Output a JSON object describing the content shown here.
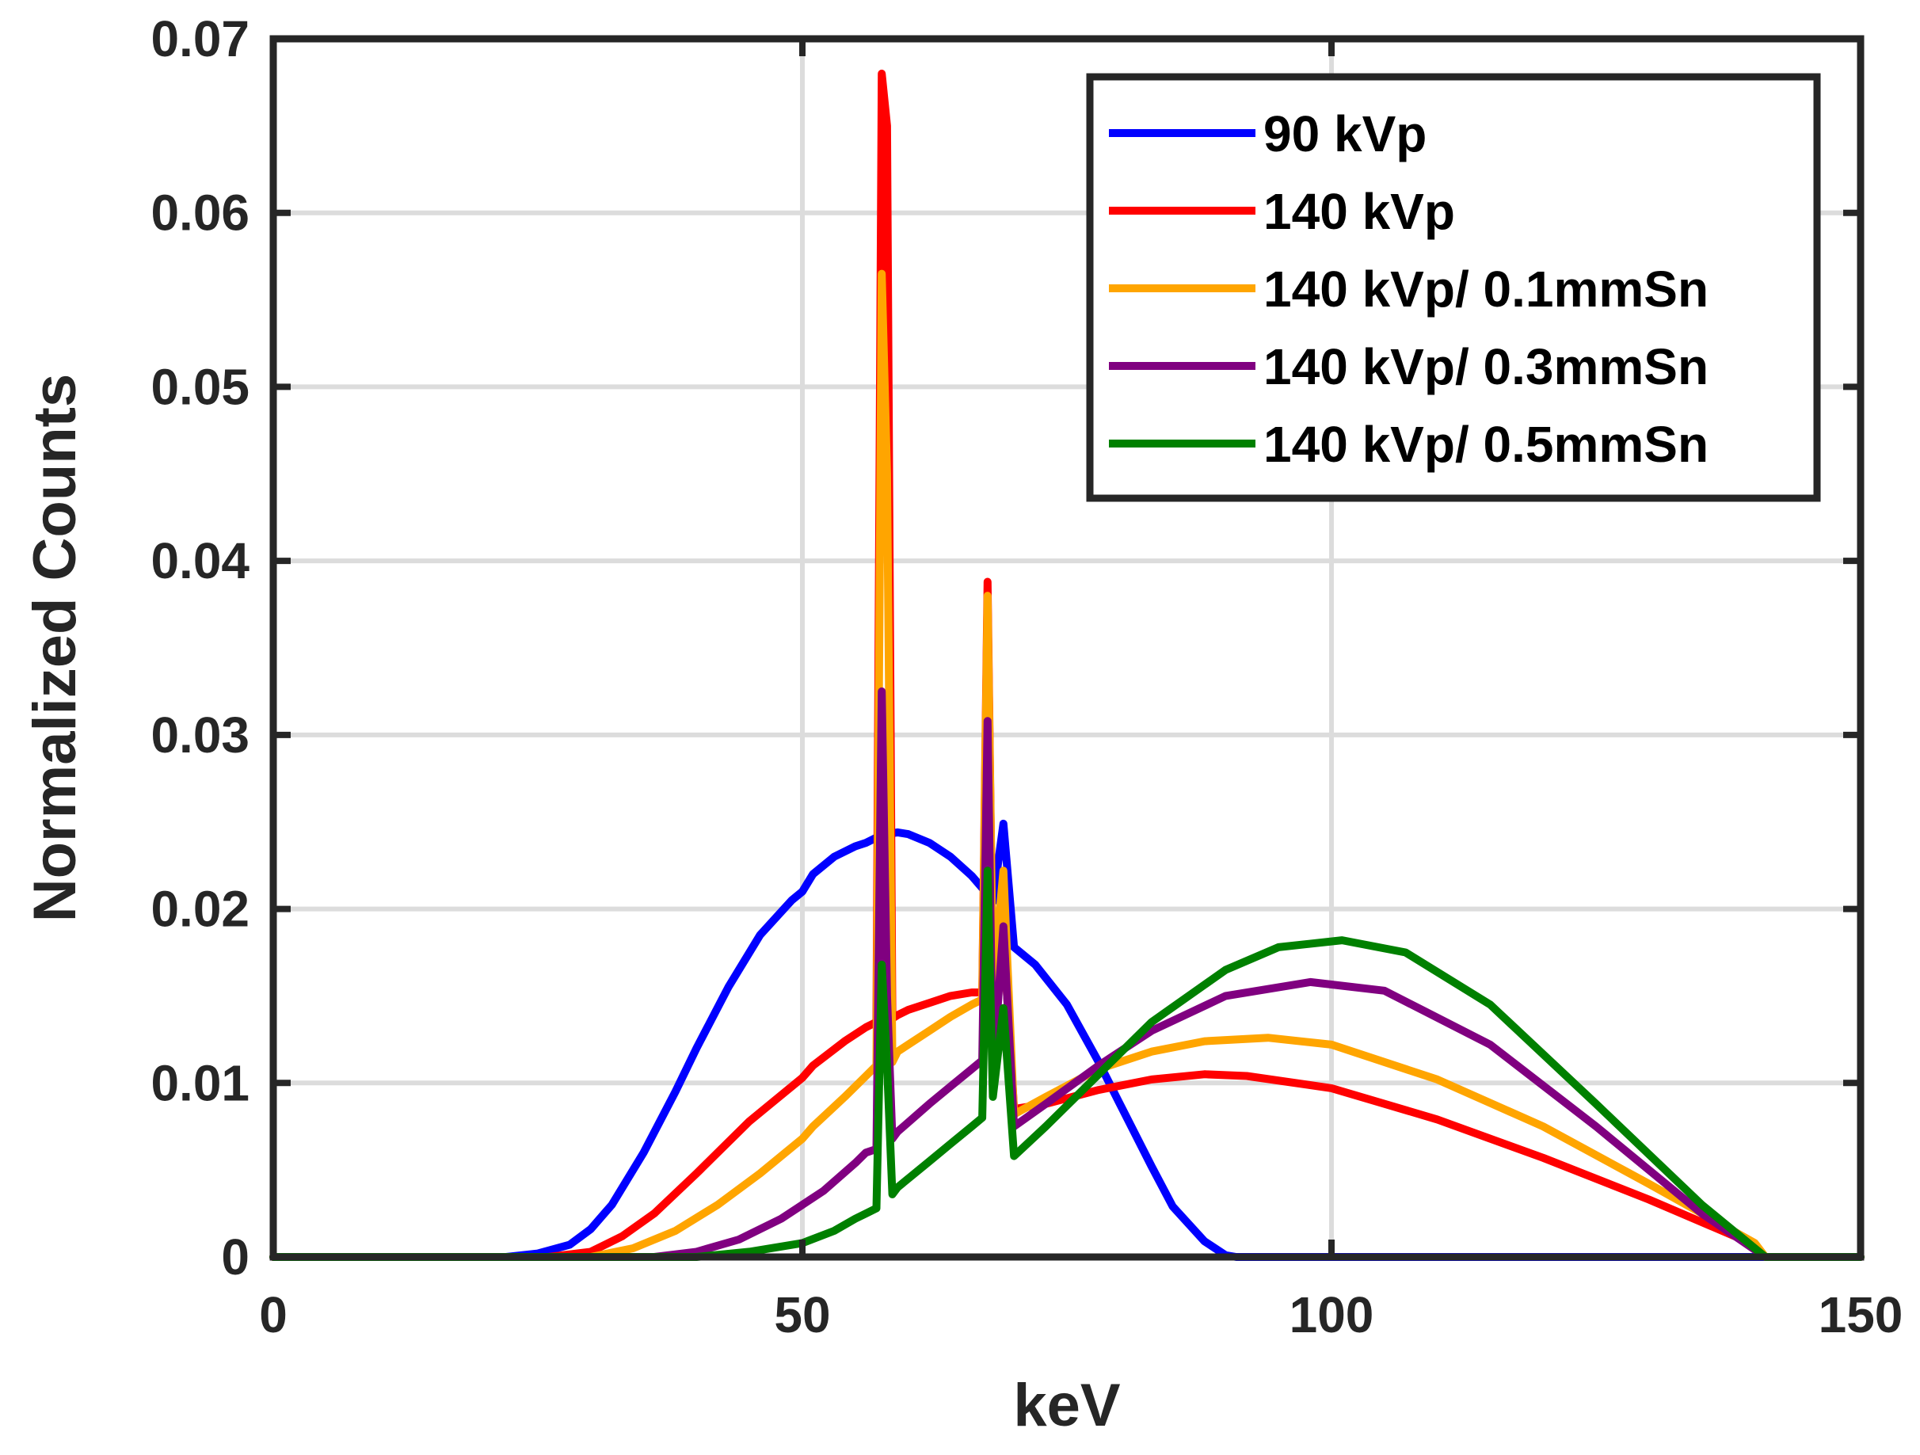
{
  "chart_data": {
    "type": "line",
    "title": "",
    "xlabel": "keV",
    "ylabel": "Normalized Counts",
    "xlim": [
      0,
      150
    ],
    "ylim": [
      0,
      0.07
    ],
    "xticks": [
      0,
      50,
      100,
      150
    ],
    "xtick_labels": [
      "0",
      "50",
      "100",
      "150"
    ],
    "yticks": [
      0,
      0.01,
      0.02,
      0.03,
      0.04,
      0.05,
      0.06,
      0.07
    ],
    "ytick_labels": [
      "0",
      "0.01",
      "0.02",
      "0.03",
      "0.04",
      "0.05",
      "0.06",
      "0.07"
    ],
    "grid": true,
    "legend_position": "top-right",
    "series": [
      {
        "name": "90 kVp",
        "color": "#0000ff",
        "x": [
          0,
          22,
          25,
          28,
          30,
          32,
          35,
          38,
          40,
          43,
          46,
          49,
          50,
          51,
          53,
          55,
          56,
          57,
          58,
          59,
          60,
          62,
          64,
          66,
          67,
          68,
          69,
          70,
          72,
          75,
          78,
          80,
          83,
          85,
          88,
          90,
          91,
          92,
          100,
          150
        ],
        "y": [
          0,
          0,
          0.0002,
          0.0007,
          0.0016,
          0.003,
          0.006,
          0.0095,
          0.012,
          0.0155,
          0.0185,
          0.0205,
          0.021,
          0.022,
          0.023,
          0.0236,
          0.0238,
          0.0241,
          0.0243,
          0.0244,
          0.0243,
          0.0238,
          0.023,
          0.0219,
          0.0212,
          0.0204,
          0.0249,
          0.0178,
          0.0168,
          0.0145,
          0.0112,
          0.0088,
          0.0052,
          0.0029,
          0.0009,
          0.0001,
          0,
          0,
          0,
          0
        ]
      },
      {
        "name": "140 kVp",
        "color": "#ff0000",
        "x": [
          0,
          26,
          30,
          33,
          36,
          40,
          45,
          50,
          51,
          54,
          56,
          57,
          57.5,
          58,
          58.5,
          59,
          60,
          62,
          64,
          66,
          67,
          67.5,
          68,
          69,
          70,
          73,
          78,
          83,
          88,
          92,
          100,
          110,
          120,
          130,
          140,
          141,
          150
        ],
        "y": [
          0,
          0,
          0.0003,
          0.0012,
          0.0025,
          0.0048,
          0.0078,
          0.0103,
          0.011,
          0.0124,
          0.0132,
          0.0135,
          0.068,
          0.065,
          0.0137,
          0.0139,
          0.0142,
          0.0146,
          0.015,
          0.0152,
          0.0152,
          0.0388,
          0.0155,
          0.0185,
          0.0085,
          0.0088,
          0.0096,
          0.0102,
          0.0105,
          0.0104,
          0.0097,
          0.0079,
          0.0057,
          0.0033,
          0.0007,
          0,
          0
        ]
      },
      {
        "name": "140 kVp/ 0.1mmSn",
        "color": "#ffa500",
        "x": [
          0,
          30,
          34,
          38,
          42,
          46,
          50,
          51,
          54,
          56,
          57,
          57.5,
          58,
          58.5,
          59,
          62,
          64,
          66,
          67,
          67.5,
          68,
          69,
          70,
          73,
          78,
          83,
          88,
          94,
          100,
          110,
          120,
          130,
          140,
          141,
          150
        ],
        "y": [
          0,
          0,
          0.0005,
          0.0015,
          0.003,
          0.0048,
          0.0068,
          0.0075,
          0.0092,
          0.0104,
          0.011,
          0.0565,
          0.045,
          0.0112,
          0.0118,
          0.013,
          0.0138,
          0.0145,
          0.0148,
          0.038,
          0.0155,
          0.0222,
          0.0082,
          0.0092,
          0.0108,
          0.0118,
          0.0124,
          0.0126,
          0.0122,
          0.0102,
          0.0075,
          0.0042,
          0.0008,
          0,
          0
        ]
      },
      {
        "name": "140 kVp/ 0.3mmSn",
        "color": "#800080",
        "x": [
          0,
          36,
          40,
          44,
          48,
          52,
          55,
          56,
          57,
          57.5,
          58,
          58.5,
          59,
          62,
          64,
          66,
          67,
          67.5,
          68,
          69,
          70,
          73,
          78,
          83,
          90,
          98,
          105,
          115,
          125,
          135,
          141,
          150
        ],
        "y": [
          0,
          0,
          0.0003,
          0.001,
          0.0022,
          0.0038,
          0.0054,
          0.006,
          0.0062,
          0.0325,
          0.015,
          0.0068,
          0.0072,
          0.0088,
          0.0098,
          0.0108,
          0.0113,
          0.0308,
          0.0105,
          0.019,
          0.0075,
          0.0088,
          0.011,
          0.013,
          0.015,
          0.0158,
          0.0153,
          0.0122,
          0.0075,
          0.0025,
          0,
          0
        ]
      },
      {
        "name": "140 kVp/ 0.5mmSn",
        "color": "#008000",
        "x": [
          0,
          40,
          45,
          50,
          53,
          55,
          56,
          57,
          57.5,
          58,
          58.5,
          59,
          62,
          64,
          66,
          67,
          67.5,
          68,
          69,
          70,
          73,
          78,
          83,
          90,
          95,
          101,
          107,
          115,
          125,
          135,
          141,
          150
        ],
        "y": [
          0,
          0,
          0.0003,
          0.0008,
          0.0015,
          0.0022,
          0.0025,
          0.0028,
          0.0168,
          0.011,
          0.0036,
          0.004,
          0.0055,
          0.0065,
          0.0075,
          0.008,
          0.0222,
          0.0092,
          0.0143,
          0.0058,
          0.0075,
          0.0105,
          0.0135,
          0.0165,
          0.0178,
          0.0182,
          0.0175,
          0.0145,
          0.0088,
          0.003,
          0,
          0
        ]
      }
    ]
  }
}
